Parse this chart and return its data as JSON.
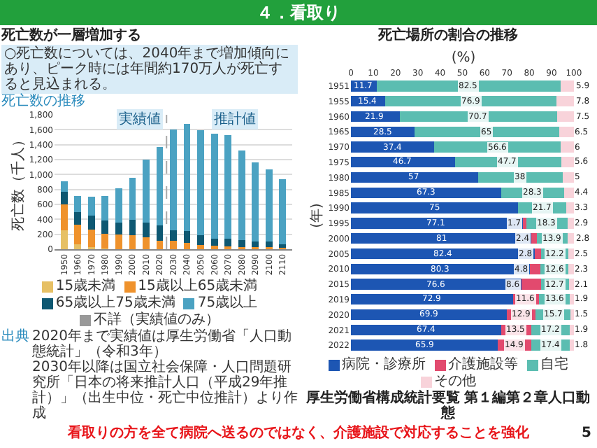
{
  "chart_data": [
    {
      "type": "bar",
      "title": "死亡数が一層増加する",
      "subtitle": "○死亡数については、2040年まで増加傾向にあり、ピーク時には年間約170万人が死亡すると見込まれる。",
      "ylabel": "死亡数（千人）",
      "annotations": [
        "死亡数の推移",
        {
          "text": "実績値",
          "x": 2005,
          "y": 1750
        },
        {
          "text": "推計値",
          "x": 2075,
          "y": 1750
        },
        "出典",
        "2020年まで実績値は厚生労働省「人口動態統計」（令和3年）",
        "2030年以降は国立社会保障・人口問題研究所「日本の将来推計人口（平成29年推計）」（出生中位・死亡中位推計）より作成"
      ],
      "x": [
        1950,
        1960,
        1970,
        1980,
        1990,
        2000,
        2010,
        2020,
        2030,
        2040,
        2050,
        2060,
        2070,
        2080,
        2090,
        2100,
        2110
      ],
      "xlim": [
        1943,
        2117
      ],
      "xticks": [
        1950,
        1960,
        1970,
        1980,
        1990,
        2000,
        2010,
        2020,
        2030,
        2040,
        2050,
        2060,
        2070,
        2080,
        2090,
        2100,
        2110
      ],
      "ylim": [
        0,
        1800
      ],
      "yticks": [
        0,
        200,
        400,
        600,
        800,
        {
          "value": 1000,
          "label": "1,000"
        },
        {
          "value": 1200,
          "label": "1,200"
        },
        {
          "value": 1400,
          "label": "1,400"
        },
        {
          "value": 1600,
          "label": "1,600"
        },
        {
          "value": 1800,
          "label": "1,800"
        }
      ],
      "stacked": true,
      "grid": "y",
      "legend": "bottom",
      "ref_lines": [
        {
          "axis": "x",
          "value": 2025,
          "color": "#aaaaaa",
          "line_style": "dashed"
        }
      ],
      "series": [
        {
          "name": "15歳未満",
          "color": "#e6c065",
          "values": [
            250,
            70,
            30,
            10,
            null,
            null,
            null,
            null,
            null,
            null,
            null,
            null,
            null,
            null,
            null,
            null,
            null
          ]
        },
        {
          "name": "15歳以上65歳未満",
          "color": "#ef922c",
          "values": [
            350,
            260,
            230,
            200,
            200,
            190,
            160,
            110,
            110,
            80,
            60,
            50,
            40,
            30,
            30,
            30,
            20
          ]
        },
        {
          "name": "65歳以上75歳未満",
          "color": "#0e5872",
          "values": [
            170,
            170,
            190,
            170,
            160,
            200,
            200,
            210,
            140,
            160,
            130,
            90,
            100,
            90,
            70,
            70,
            50
          ]
        },
        {
          "name": "75歳以上",
          "color": "#4ba2c2",
          "values": [
            140,
            210,
            250,
            330,
            460,
            570,
            840,
            1050,
            1350,
            1440,
            1400,
            1410,
            1390,
            1200,
            1060,
            970,
            870
          ]
        },
        {
          "name": "不詳（実績値のみ）",
          "color": "#999999",
          "values": [
            null,
            null,
            null,
            null,
            null,
            null,
            null,
            null,
            null,
            null,
            null,
            null,
            null,
            null,
            null,
            null,
            null
          ]
        }
      ]
    },
    {
      "type": "bar",
      "title": "死亡場所の割合の推移",
      "orientation": "horizontal",
      "stacked": true,
      "data_labels": true,
      "legend": "bottom",
      "xlabel": "(%)",
      "ylabel": "(年)",
      "annotations": [
        "厚生労働省構成統計要覧 第１編第２章人口動態"
      ],
      "categories": [
        "1951",
        "1955",
        "1960",
        "1965",
        "1970",
        "1975",
        "1980",
        "1985",
        "1990",
        "1995",
        "2000",
        "2005",
        "2010",
        "2015",
        "2019",
        "2020",
        "2021",
        "2022"
      ],
      "xlim": [
        0,
        101
      ],
      "xticks": [
        0,
        10,
        20,
        30,
        40,
        50,
        60,
        70,
        80,
        90,
        100
      ],
      "series": [
        {
          "name": "病院・診療所",
          "color": "#1d56b3",
          "values": [
            11.7,
            15.4,
            21.9,
            28.5,
            37.4,
            46.7,
            57,
            67.3,
            75,
            77.1,
            81,
            82.4,
            80.3,
            76.6,
            72.9,
            69.9,
            67.4,
            65.9
          ]
        },
        {
          "name": "介護施設等",
          "color": "#e24a6e",
          "values": [
            null,
            null,
            null,
            null,
            null,
            null,
            null,
            null,
            null,
            1.7,
            2.4,
            2.8,
            4.8,
            8.6,
            11.6,
            12.9,
            13.5,
            14.9
          ]
        },
        {
          "name": "自宅",
          "color": "#5bbdb1",
          "values": [
            82.5,
            76.9,
            70.7,
            65,
            56.6,
            47.7,
            38,
            28.3,
            21.7,
            18.3,
            13.9,
            12.2,
            12.6,
            12.7,
            13.6,
            15.7,
            17.2,
            17.4
          ]
        },
        {
          "name": "その他",
          "color": "#f8d3da",
          "values": [
            5.9,
            7.8,
            7.5,
            6.5,
            6,
            5.6,
            5,
            4.4,
            3.3,
            2.9,
            2.8,
            2.5,
            2.3,
            2.1,
            1.9,
            1.5,
            1.9,
            1.8
          ]
        }
      ]
    },
    {
      "type": "other",
      "title": "４．看取り",
      "annotations": [
        "看取りの方を全て病院へ送るのではなく、介護施設で対応することを強化",
        "5"
      ]
    }
  ]
}
